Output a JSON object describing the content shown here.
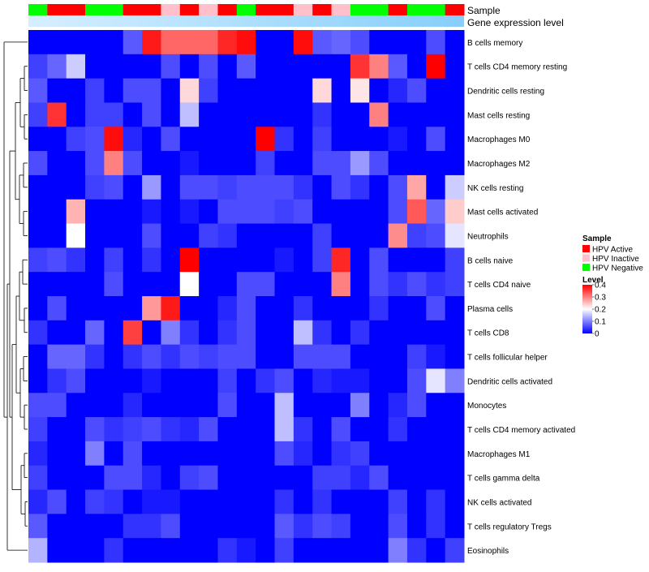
{
  "chart_data": {
    "type": "heatmap",
    "annotation_labels": [
      "Sample",
      "Gene expression level"
    ],
    "columns": 23,
    "sample_groups": [
      "Negative",
      "Active",
      "Active",
      "Negative",
      "Negative",
      "Active",
      "Active",
      "Inactive",
      "Active",
      "Inactive",
      "Active",
      "Negative",
      "Active",
      "Active",
      "Inactive",
      "Active",
      "Inactive",
      "Negative",
      "Negative",
      "Active",
      "Negative",
      "Negative",
      "Active"
    ],
    "rows": [
      {
        "label": "B cells memory",
        "values": [
          0,
          0,
          0,
          0,
          0,
          0.07,
          0.38,
          0.32,
          0.32,
          0.32,
          0.37,
          0.39,
          0,
          0,
          0.39,
          0.07,
          0.08,
          0.06,
          0,
          0,
          0,
          0.06,
          0
        ]
      },
      {
        "label": "T cells CD4 memory resting",
        "values": [
          0.05,
          0.08,
          0.16,
          0,
          0,
          0,
          0,
          0.06,
          0,
          0.06,
          0,
          0.07,
          0,
          0,
          0,
          0,
          0,
          0.36,
          0.3,
          0.07,
          0,
          0.4,
          0
        ]
      },
      {
        "label": "Dendritic cells resting",
        "values": [
          0.07,
          0,
          0,
          0.05,
          0,
          0.06,
          0.06,
          0,
          0.23,
          0.05,
          0,
          0,
          0,
          0,
          0,
          0.23,
          0,
          0.22,
          0,
          0.03,
          0.06,
          0,
          0
        ]
      },
      {
        "label": "Mast cells resting",
        "values": [
          0.05,
          0.36,
          0,
          0.05,
          0.05,
          0,
          0.06,
          0,
          0.15,
          0,
          0,
          0,
          0,
          0,
          0,
          0.04,
          0,
          0,
          0.3,
          0,
          0,
          0,
          0
        ]
      },
      {
        "label": "Macrophages M0",
        "values": [
          0,
          0,
          0.05,
          0.06,
          0.39,
          0.03,
          0,
          0.06,
          0,
          0,
          0,
          0,
          0.4,
          0.04,
          0,
          0.05,
          0,
          0,
          0,
          0.02,
          0,
          0.06,
          0
        ]
      },
      {
        "label": "Macrophages M2",
        "values": [
          0.06,
          0,
          0,
          0.06,
          0.3,
          0.06,
          0,
          0,
          0.02,
          0,
          0,
          0,
          0.05,
          0,
          0,
          0.06,
          0.06,
          0.12,
          0.06,
          0,
          0,
          0,
          0
        ]
      },
      {
        "label": "NK cells resting",
        "values": [
          0,
          0,
          0,
          0.05,
          0.06,
          0,
          0.12,
          0,
          0.06,
          0.06,
          0.05,
          0.06,
          0.06,
          0.06,
          0.04,
          0,
          0.06,
          0.04,
          0,
          0.06,
          0.27,
          0,
          0.16
        ]
      },
      {
        "label": "Mast cells activated",
        "values": [
          0,
          0,
          0.26,
          0,
          0,
          0,
          0.02,
          0,
          0.02,
          0,
          0.06,
          0.06,
          0.06,
          0.05,
          0.06,
          0,
          0,
          0,
          0,
          0.06,
          0.33,
          0.08,
          0.24
        ]
      },
      {
        "label": "Neutrophils",
        "values": [
          0,
          0,
          0.2,
          0,
          0,
          0,
          0.06,
          0,
          0,
          0.05,
          0.04,
          0,
          0,
          0,
          0,
          0.05,
          0,
          0,
          0,
          0.29,
          0.05,
          0.06,
          0.18
        ]
      },
      {
        "label": "B cells naive",
        "values": [
          0.05,
          0.06,
          0.04,
          0,
          0.05,
          0,
          0.04,
          0,
          0.4,
          0,
          0,
          0,
          0,
          0.02,
          0,
          0.05,
          0.37,
          0,
          0.06,
          0,
          0,
          0,
          0.05
        ]
      },
      {
        "label": "T cells CD4 naive",
        "values": [
          0,
          0,
          0,
          0,
          0.06,
          0,
          0,
          0,
          0.2,
          0,
          0,
          0.06,
          0.06,
          0,
          0,
          0,
          0.3,
          0,
          0.06,
          0.04,
          0.06,
          0.04,
          0.05
        ]
      },
      {
        "label": "Plasma cells",
        "values": [
          0,
          0.06,
          0,
          0,
          0,
          0,
          0.28,
          0.38,
          0,
          0,
          0.03,
          0.06,
          0,
          0,
          0.04,
          0,
          0,
          0,
          0.04,
          0,
          0,
          0.06,
          0
        ]
      },
      {
        "label": "T cells CD8",
        "values": [
          0.04,
          0,
          0,
          0.08,
          0,
          0.35,
          0,
          0.1,
          0.04,
          0,
          0.04,
          0.06,
          0,
          0,
          0.15,
          0.04,
          0,
          0.04,
          0,
          0,
          0,
          0,
          0
        ]
      },
      {
        "label": "T cells follicular helper",
        "values": [
          0,
          0.08,
          0.08,
          0.04,
          0,
          0.04,
          0.06,
          0.04,
          0.06,
          0.05,
          0.06,
          0.06,
          0,
          0,
          0.06,
          0.06,
          0.06,
          0,
          0,
          0,
          0.05,
          0.02,
          0
        ]
      },
      {
        "label": "Dendritic cells activated",
        "values": [
          0,
          0.04,
          0.06,
          0,
          0,
          0,
          0.02,
          0,
          0,
          0,
          0.05,
          0,
          0.04,
          0.06,
          0,
          0.03,
          0.02,
          0.02,
          0,
          0,
          0.06,
          0.18,
          0.1
        ]
      },
      {
        "label": "Monocytes",
        "values": [
          0.06,
          0.06,
          0,
          0,
          0,
          0.03,
          0,
          0,
          0,
          0,
          0.06,
          0,
          0,
          0.15,
          0,
          0,
          0,
          0.1,
          0,
          0.03,
          0.06,
          0,
          0
        ]
      },
      {
        "label": "T cells CD4 memory activated",
        "values": [
          0.05,
          0,
          0,
          0.06,
          0.04,
          0.05,
          0.06,
          0.04,
          0.03,
          0.06,
          0,
          0,
          0,
          0.15,
          0.04,
          0,
          0.06,
          0,
          0,
          0.04,
          0,
          0,
          0
        ]
      },
      {
        "label": "Macrophages M1",
        "values": [
          0.03,
          0,
          0,
          0.1,
          0,
          0.06,
          0,
          0,
          0,
          0,
          0,
          0,
          0,
          0.06,
          0.03,
          0,
          0.04,
          0.05,
          0,
          0,
          0,
          0,
          0
        ]
      },
      {
        "label": "T cells gamma delta",
        "values": [
          0.05,
          0,
          0,
          0,
          0.06,
          0.06,
          0.03,
          0,
          0.05,
          0.06,
          0,
          0,
          0,
          0,
          0,
          0.05,
          0.05,
          0.03,
          0.06,
          0,
          0,
          0,
          0
        ]
      },
      {
        "label": "NK cells activated",
        "values": [
          0.03,
          0.06,
          0,
          0.05,
          0.04,
          0,
          0.02,
          0.02,
          0,
          0,
          0,
          0,
          0,
          0.04,
          0,
          0.04,
          0,
          0,
          0,
          0.05,
          0,
          0.04,
          0
        ]
      },
      {
        "label": "T cells regulatory  Tregs",
        "values": [
          0.07,
          0,
          0,
          0,
          0,
          0.04,
          0.04,
          0.06,
          0,
          0,
          0,
          0,
          0,
          0.07,
          0.04,
          0.06,
          0.05,
          0,
          0,
          0.06,
          0,
          0.04,
          0
        ]
      },
      {
        "label": "Eosinophils",
        "values": [
          0.14,
          0,
          0,
          0,
          0.04,
          0,
          0,
          0,
          0,
          0,
          0.04,
          0.02,
          0,
          0.05,
          0,
          0,
          0,
          0,
          0,
          0.1,
          0.04,
          0,
          0.05
        ]
      }
    ],
    "legend_sample": {
      "title": "Sample",
      "entries": [
        {
          "key": "Active",
          "label": "HPV Active",
          "color": "#ff0000"
        },
        {
          "key": "Inactive",
          "label": "HPV Inactive",
          "color": "#ffc0cb"
        },
        {
          "key": "Negative",
          "label": "HPV Negative",
          "color": "#00ff00"
        }
      ]
    },
    "legend_level": {
      "title": "Level",
      "ticks": [
        0.4,
        0.3,
        0.2,
        0.1,
        0
      ],
      "range": [
        0,
        0.4
      ],
      "colors": {
        "low": "#0000ff",
        "mid": "#ffffff",
        "high": "#ff0000"
      }
    },
    "expression_bar_colors": [
      "#d6efff",
      "#87cefa"
    ]
  }
}
